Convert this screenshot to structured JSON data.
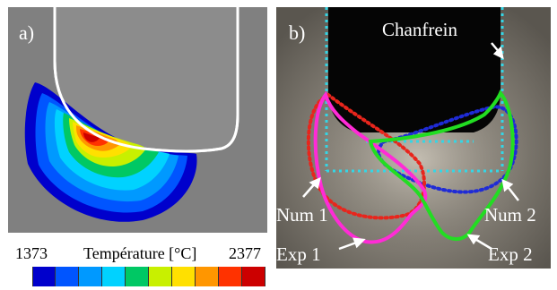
{
  "panel_a": {
    "label": "a)"
  },
  "panel_b": {
    "label": "b)",
    "annotations": {
      "chamfer": "Chanfrein",
      "num1": "Num 1",
      "num2": "Num 2",
      "exp1": "Exp 1",
      "exp2": "Exp 2"
    },
    "colors": {
      "num1": "#e8251c",
      "num2": "#1f2bd6",
      "exp1": "#ff2bd6",
      "exp2": "#22dd22",
      "chamfer_box": "#33d6e6",
      "tool": "#050505"
    }
  },
  "colorbar": {
    "min": "1373",
    "title": "Température [°C]",
    "max": "2377",
    "colors": [
      "#0000cc",
      "#0055ff",
      "#0099ff",
      "#00d2ff",
      "#00c864",
      "#c8f000",
      "#ffe000",
      "#ff9600",
      "#ff3200",
      "#cc0000"
    ]
  }
}
